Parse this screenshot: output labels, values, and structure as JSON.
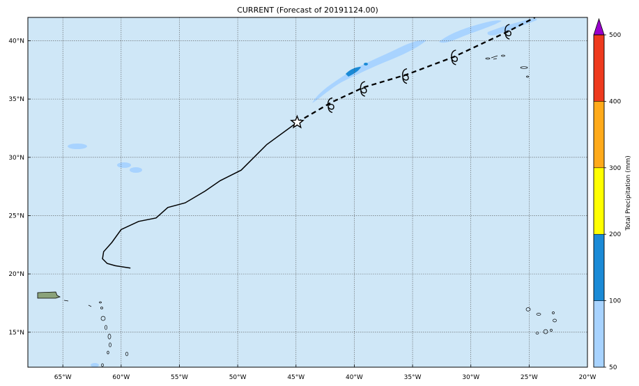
{
  "title": "CURRENT (Forecast of 20191124.00)",
  "colorbar": {
    "label": "Total Precipitation (mm)",
    "ticks": [
      "50",
      "100",
      "200",
      "300",
      "400",
      "500"
    ],
    "colors": [
      "#a8d3ff",
      "#1a8ad6",
      "#ffff00",
      "#ffaa1a",
      "#ee3a1e",
      "#9900cc"
    ]
  },
  "map": {
    "lon_range": [
      -68,
      -20
    ],
    "lat_range": [
      12,
      42
    ],
    "ocean_color": "#cfe7f7",
    "land_color": "#8aa27a",
    "lon_ticks": [
      {
        "value": -65,
        "label": "65°W"
      },
      {
        "value": -60,
        "label": "60°W"
      },
      {
        "value": -55,
        "label": "55°W"
      },
      {
        "value": -50,
        "label": "50°W"
      },
      {
        "value": -45,
        "label": "45°W"
      },
      {
        "value": -40,
        "label": "40°W"
      },
      {
        "value": -35,
        "label": "35°W"
      },
      {
        "value": -30,
        "label": "30°W"
      },
      {
        "value": -25,
        "label": "25°W"
      },
      {
        "value": -20,
        "label": "20°W"
      }
    ],
    "lat_ticks": [
      {
        "value": 15,
        "label": "15°N"
      },
      {
        "value": 20,
        "label": "20°N"
      },
      {
        "value": 25,
        "label": "25°N"
      },
      {
        "value": 30,
        "label": "30°N"
      },
      {
        "value": 35,
        "label": "35°N"
      },
      {
        "value": 40,
        "label": "40°N"
      }
    ],
    "past_track": [
      [
        -59.2,
        20.5
      ],
      [
        -60.5,
        20.7
      ],
      [
        -61.2,
        20.9
      ],
      [
        -61.6,
        21.3
      ],
      [
        -61.5,
        21.9
      ],
      [
        -60.8,
        22.7
      ],
      [
        -60.0,
        23.8
      ],
      [
        -58.5,
        24.5
      ],
      [
        -57.0,
        24.8
      ],
      [
        -56.0,
        25.7
      ],
      [
        -54.5,
        26.1
      ],
      [
        -52.8,
        27.1
      ],
      [
        -51.5,
        28.0
      ],
      [
        -49.7,
        28.9
      ],
      [
        -47.5,
        31.1
      ],
      [
        -44.9,
        33.0
      ]
    ],
    "forecast_track": [
      [
        -44.9,
        33.0
      ],
      [
        -42.0,
        34.7
      ],
      [
        -39.2,
        36.0
      ],
      [
        -35.5,
        37.1
      ],
      [
        -31.5,
        38.6
      ],
      [
        -26.8,
        40.8
      ],
      [
        -24.5,
        42.0
      ]
    ],
    "current_position": [
      -44.9,
      33.0
    ],
    "forecast_symbols": [
      [
        -42.0,
        34.5
      ],
      [
        -39.2,
        35.9
      ],
      [
        -35.6,
        37.0
      ],
      [
        -31.4,
        38.6
      ],
      [
        -26.8,
        40.8
      ]
    ]
  }
}
